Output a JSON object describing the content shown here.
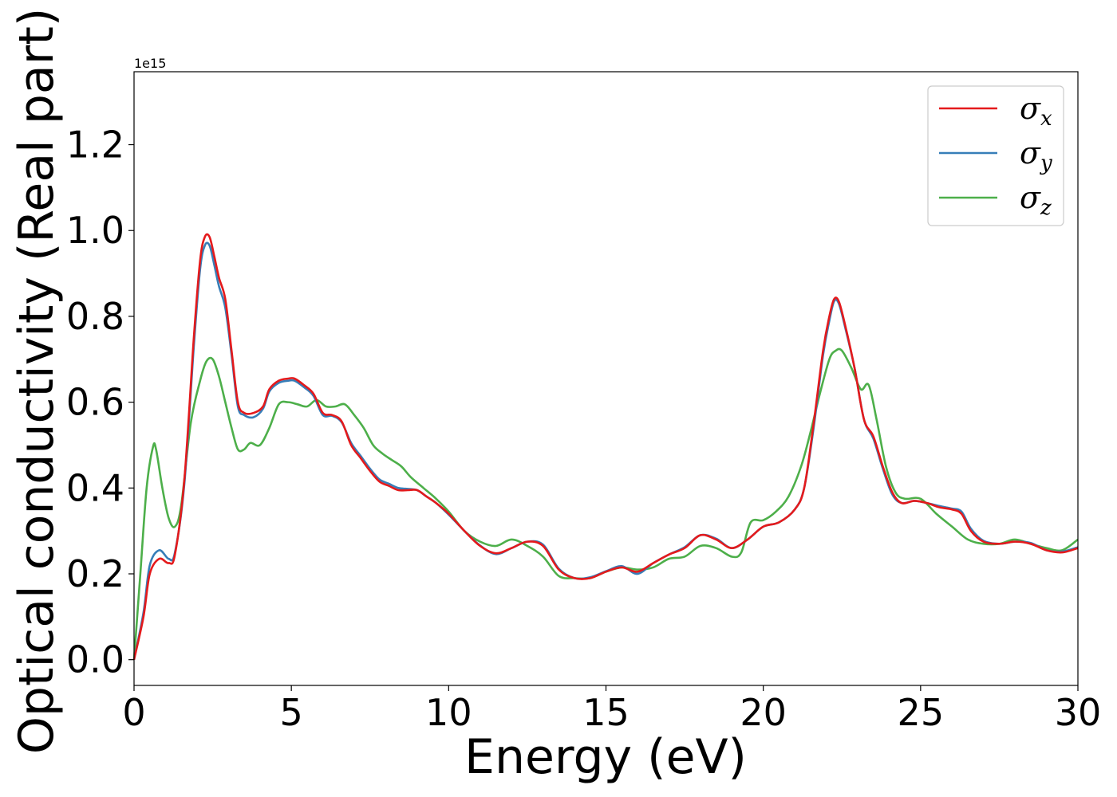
{
  "chart_data": {
    "type": "line",
    "title": "",
    "xlabel": "Energy (eV)",
    "ylabel": "Optical conductivity (Real part)",
    "y_offset_label": "1e15",
    "xlim": [
      0,
      30
    ],
    "ylim": [
      -0.06,
      1.37
    ],
    "x_ticks": [
      0,
      5,
      10,
      15,
      20,
      25,
      30
    ],
    "x_tick_labels": [
      "0",
      "5",
      "10",
      "15",
      "20",
      "25",
      "30"
    ],
    "y_ticks": [
      0.0,
      0.2,
      0.4,
      0.6,
      0.8,
      1.0,
      1.2
    ],
    "y_tick_labels": [
      "0.0",
      "0.2",
      "0.4",
      "0.6",
      "0.8",
      "1.0",
      "1.2"
    ],
    "grid": false,
    "legend_position": "top-right",
    "series": [
      {
        "name": "σx",
        "legend_main": "σ",
        "legend_sub": "x",
        "color": "#e41a1c",
        "x": [
          0,
          0.3,
          0.5,
          0.8,
          1.1,
          1.3,
          1.6,
          1.9,
          2.1,
          2.25,
          2.4,
          2.55,
          2.7,
          2.9,
          3.1,
          3.3,
          3.5,
          3.8,
          4.1,
          4.3,
          4.6,
          4.9,
          5.1,
          5.4,
          5.7,
          6.0,
          6.3,
          6.6,
          6.9,
          7.2,
          7.5,
          7.8,
          8.1,
          8.4,
          8.7,
          9.0,
          9.3,
          9.6,
          10.0,
          10.5,
          11.0,
          11.5,
          12.0,
          12.5,
          13.0,
          13.5,
          14.0,
          14.5,
          15.0,
          15.5,
          16.0,
          16.5,
          17.0,
          17.5,
          18.0,
          18.5,
          19.0,
          19.5,
          20.0,
          20.5,
          21.0,
          21.3,
          21.6,
          21.9,
          22.1,
          22.25,
          22.4,
          22.6,
          22.9,
          23.2,
          23.5,
          23.8,
          24.1,
          24.4,
          24.8,
          25.2,
          25.6,
          26.0,
          26.3,
          26.6,
          27.0,
          27.5,
          28.0,
          28.5,
          29.0,
          29.5,
          30.0
        ],
        "y": [
          0.0,
          0.1,
          0.2,
          0.235,
          0.225,
          0.245,
          0.42,
          0.75,
          0.93,
          0.985,
          0.985,
          0.94,
          0.89,
          0.84,
          0.72,
          0.6,
          0.575,
          0.575,
          0.59,
          0.63,
          0.65,
          0.655,
          0.655,
          0.64,
          0.62,
          0.575,
          0.57,
          0.555,
          0.5,
          0.47,
          0.44,
          0.415,
          0.405,
          0.395,
          0.395,
          0.395,
          0.38,
          0.365,
          0.34,
          0.3,
          0.265,
          0.248,
          0.26,
          0.275,
          0.265,
          0.21,
          0.19,
          0.19,
          0.205,
          0.215,
          0.205,
          0.225,
          0.245,
          0.26,
          0.29,
          0.28,
          0.26,
          0.28,
          0.31,
          0.32,
          0.35,
          0.4,
          0.55,
          0.72,
          0.8,
          0.84,
          0.835,
          0.78,
          0.68,
          0.56,
          0.52,
          0.45,
          0.39,
          0.365,
          0.37,
          0.365,
          0.355,
          0.35,
          0.34,
          0.3,
          0.275,
          0.27,
          0.275,
          0.27,
          0.255,
          0.25,
          0.26
        ]
      },
      {
        "name": "σy",
        "legend_main": "σ",
        "legend_sub": "y",
        "color": "#377eb8",
        "x": [
          0,
          0.3,
          0.5,
          0.8,
          1.1,
          1.3,
          1.6,
          1.9,
          2.1,
          2.25,
          2.4,
          2.55,
          2.7,
          2.9,
          3.1,
          3.3,
          3.5,
          3.8,
          4.1,
          4.3,
          4.6,
          4.9,
          5.1,
          5.4,
          5.7,
          6.0,
          6.3,
          6.6,
          6.9,
          7.2,
          7.5,
          7.8,
          8.1,
          8.4,
          8.7,
          9.0,
          9.3,
          9.6,
          10.0,
          10.5,
          11.0,
          11.5,
          12.0,
          12.5,
          13.0,
          13.5,
          14.0,
          14.5,
          15.0,
          15.5,
          16.0,
          16.5,
          17.0,
          17.5,
          18.0,
          18.5,
          19.0,
          19.5,
          20.0,
          20.5,
          21.0,
          21.3,
          21.6,
          21.9,
          22.1,
          22.25,
          22.4,
          22.6,
          22.9,
          23.2,
          23.5,
          23.8,
          24.1,
          24.4,
          24.8,
          25.2,
          25.6,
          26.0,
          26.3,
          26.6,
          27.0,
          27.5,
          28.0,
          28.5,
          29.0,
          29.5,
          30.0
        ],
        "y": [
          0.0,
          0.11,
          0.22,
          0.255,
          0.235,
          0.25,
          0.41,
          0.73,
          0.91,
          0.965,
          0.965,
          0.92,
          0.87,
          0.82,
          0.71,
          0.59,
          0.57,
          0.565,
          0.585,
          0.625,
          0.645,
          0.65,
          0.65,
          0.635,
          0.615,
          0.57,
          0.568,
          0.553,
          0.505,
          0.475,
          0.445,
          0.42,
          0.41,
          0.4,
          0.398,
          0.395,
          0.38,
          0.365,
          0.338,
          0.3,
          0.266,
          0.246,
          0.26,
          0.275,
          0.268,
          0.212,
          0.19,
          0.192,
          0.206,
          0.218,
          0.2,
          0.225,
          0.245,
          0.262,
          0.29,
          0.282,
          0.26,
          0.28,
          0.31,
          0.32,
          0.35,
          0.4,
          0.54,
          0.71,
          0.79,
          0.835,
          0.83,
          0.775,
          0.68,
          0.56,
          0.515,
          0.445,
          0.385,
          0.365,
          0.37,
          0.365,
          0.358,
          0.352,
          0.345,
          0.305,
          0.277,
          0.27,
          0.275,
          0.272,
          0.255,
          0.252,
          0.262
        ]
      },
      {
        "name": "σz",
        "legend_main": "σ",
        "legend_sub": "z",
        "color": "#4daf4a",
        "x": [
          0,
          0.2,
          0.4,
          0.6,
          0.7,
          0.9,
          1.1,
          1.3,
          1.5,
          1.8,
          2.1,
          2.3,
          2.5,
          2.7,
          2.9,
          3.1,
          3.3,
          3.5,
          3.7,
          4.0,
          4.3,
          4.6,
          4.9,
          5.2,
          5.5,
          5.8,
          6.1,
          6.4,
          6.7,
          7.0,
          7.3,
          7.6,
          7.9,
          8.2,
          8.5,
          8.8,
          9.2,
          9.6,
          10.0,
          10.5,
          11.0,
          11.5,
          12.0,
          12.5,
          13.0,
          13.5,
          14.0,
          14.5,
          15.0,
          15.5,
          16.0,
          16.5,
          17.0,
          17.5,
          18.0,
          18.5,
          19.0,
          19.3,
          19.6,
          20.0,
          20.4,
          20.8,
          21.2,
          21.5,
          21.8,
          22.1,
          22.3,
          22.5,
          22.8,
          23.1,
          23.35,
          23.6,
          23.9,
          24.2,
          24.5,
          25.0,
          25.5,
          26.0,
          26.5,
          27.0,
          27.5,
          28.0,
          28.5,
          29.0,
          29.5,
          30.0
        ],
        "y": [
          0.0,
          0.2,
          0.4,
          0.495,
          0.49,
          0.4,
          0.33,
          0.31,
          0.36,
          0.55,
          0.65,
          0.695,
          0.7,
          0.66,
          0.6,
          0.54,
          0.49,
          0.49,
          0.505,
          0.5,
          0.54,
          0.595,
          0.6,
          0.595,
          0.59,
          0.605,
          0.59,
          0.59,
          0.595,
          0.57,
          0.54,
          0.5,
          0.48,
          0.465,
          0.45,
          0.425,
          0.4,
          0.375,
          0.345,
          0.3,
          0.275,
          0.265,
          0.28,
          0.265,
          0.24,
          0.195,
          0.19,
          0.19,
          0.205,
          0.215,
          0.21,
          0.215,
          0.235,
          0.24,
          0.265,
          0.26,
          0.24,
          0.25,
          0.32,
          0.325,
          0.345,
          0.38,
          0.45,
          0.53,
          0.62,
          0.7,
          0.72,
          0.72,
          0.68,
          0.63,
          0.64,
          0.56,
          0.45,
          0.39,
          0.375,
          0.375,
          0.34,
          0.31,
          0.28,
          0.27,
          0.27,
          0.28,
          0.27,
          0.26,
          0.255,
          0.28
        ]
      }
    ]
  }
}
